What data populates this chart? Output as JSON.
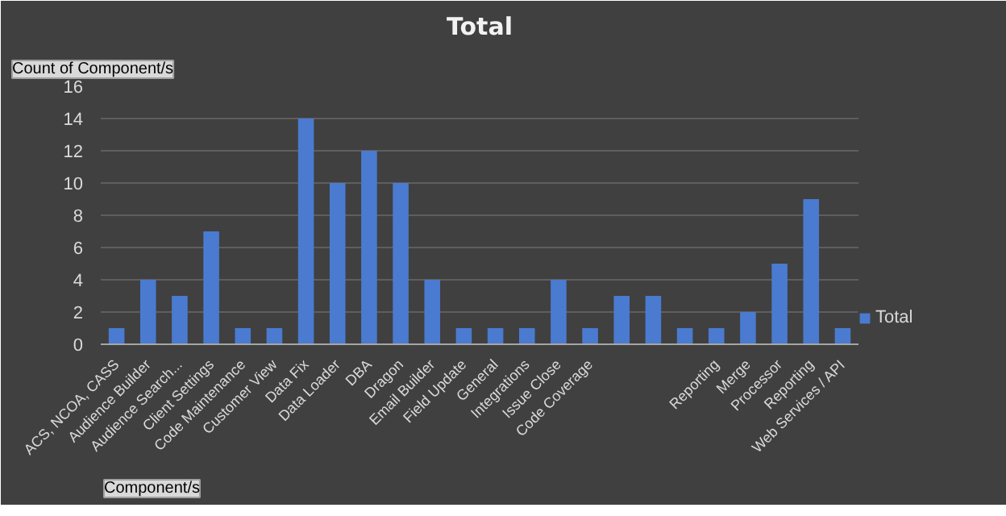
{
  "chart_data": {
    "type": "bar",
    "title": "Total",
    "categories": [
      "ACS, NCOA, CASS",
      "Audience Builder",
      "Audience Search...",
      "Client Settings",
      "Code Maintenance",
      "Customer View",
      "Data Fix",
      "Data Loader",
      "DBA",
      "Dragon",
      "Email Builder",
      "Field Update",
      "General",
      "Integrations",
      "Issue Close",
      "Code Coverage",
      null,
      null,
      null,
      "Reporting",
      "Merge",
      "Processor",
      "Reporting",
      "Web Services / API"
    ],
    "series": [
      {
        "name": "Total",
        "color": "#4a7bd0",
        "values": [
          1,
          4,
          3,
          7,
          1,
          1,
          14,
          10,
          12,
          10,
          4,
          1,
          1,
          1,
          4,
          1,
          3,
          3,
          1,
          1,
          2,
          5,
          9,
          1
        ]
      }
    ],
    "ylim": [
      0,
      16
    ],
    "yticks": [
      0,
      2,
      4,
      6,
      8,
      10,
      12,
      14,
      16
    ],
    "grid": "y",
    "legend": "right",
    "annotations": [
      "Count of Component/s",
      "Component/s"
    ]
  }
}
